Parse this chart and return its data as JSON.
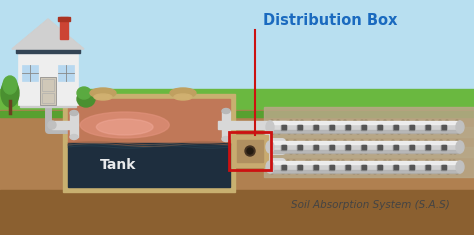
{
  "bg_sky_color": "#b8dff0",
  "bg_grass_color": "#6ab840",
  "bg_soil_color": "#b08050",
  "bg_deep_soil_color": "#8b6030",
  "title_text": "Distribution Box",
  "title_color": "#1a6abf",
  "tank_label": "Tank",
  "tank_label_color": "#ffffff",
  "sas_label": "Soil Absorption System (S.A.S)",
  "sas_label_color": "#555555",
  "tank_outer_color": "#c8ab70",
  "tank_inner_reddish": "#c87858",
  "tank_inner_dark": "#1e2e3e",
  "tank_water_color": "#2a4050",
  "dbox_color": "#c8ab70",
  "dbox_border_color": "#cc1111",
  "pipe_color": "#d8d8d8",
  "pipe_highlight": "#f5f5f5",
  "pipe_shadow": "#aaaaaa",
  "pipe_dots_color": "#666666",
  "gravel_color": "#c0aa88",
  "house_wall_color": "#eeeeee",
  "house_roof_color": "#445566",
  "house_chimney_color": "#cc4433",
  "house_door_color": "#d0c8b8",
  "house_window_color": "#b8d8f0",
  "annotation_line_color": "#cc1111",
  "lid_color": "#c0a060",
  "pipe_tee_color": "#d0d0d0",
  "grass_dark": "#58a030"
}
